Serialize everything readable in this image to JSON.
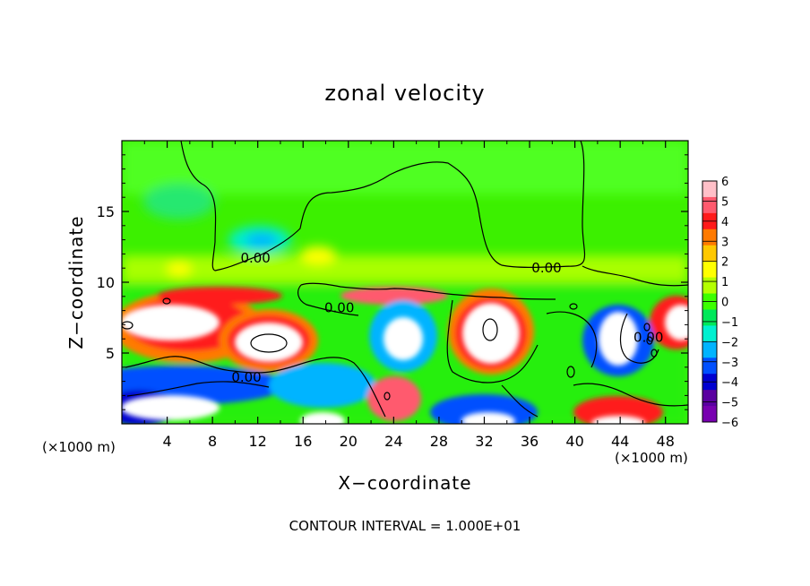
{
  "chart_data": {
    "type": "heatmap",
    "title": "zonal velocity",
    "xlabel": "X−coordinate",
    "ylabel": "Z−coordinate",
    "x_unit_left": "(×1000 m)",
    "x_unit_right": "(×1000 m)",
    "footer": "CONTOUR INTERVAL = 1.000E+01",
    "xlim": [
      0,
      50
    ],
    "ylim": [
      0,
      20
    ],
    "x_ticks": [
      4,
      8,
      12,
      16,
      20,
      24,
      28,
      32,
      36,
      40,
      44,
      48
    ],
    "y_ticks": [
      5,
      10,
      15
    ],
    "colorbar": {
      "ticks": [
        "6",
        "5",
        "4",
        "3",
        "2",
        "1",
        "0",
        "−1",
        "−2",
        "−3",
        "−4",
        "−5",
        "−6"
      ],
      "colors": [
        "#ffc0c8",
        "#ff5a6e",
        "#ff1a1a",
        "#ff7a00",
        "#ffc800",
        "#ffff00",
        "#b4ff00",
        "#3cff00",
        "#00e85a",
        "#00f0d0",
        "#00b4ff",
        "#0050ff",
        "#0000d0",
        "#5a00a0",
        "#7800b0"
      ]
    },
    "contour_labels": [
      {
        "text": "0.00",
        "x": 11.8,
        "y": 11.7
      },
      {
        "text": "0.00",
        "x": 37.5,
        "y": 11.0
      },
      {
        "text": "0.00",
        "x": 19.2,
        "y": 8.2
      },
      {
        "text": "0.00",
        "x": 11.0,
        "y": 3.3
      },
      {
        "text": "0.00",
        "x": 46.5,
        "y": 6.1
      }
    ]
  }
}
